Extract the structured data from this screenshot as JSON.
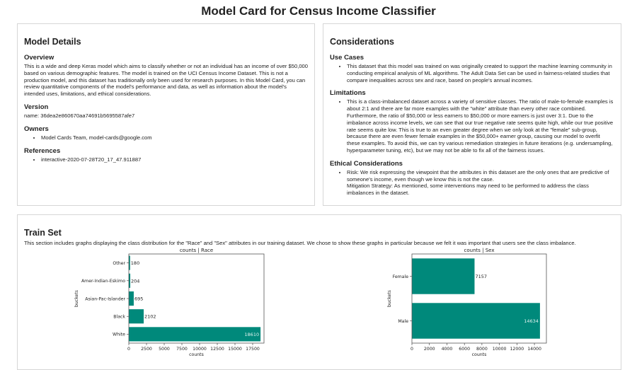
{
  "title": "Model Card for Census Income Classifier",
  "model_details": {
    "heading": "Model Details",
    "overview_heading": "Overview",
    "overview": "This is a wide and deep Keras model which aims to classify whether or not an individual has an income of over $50,000 based on various demographic features. The model is trained on the UCI Census Income Dataset. This is not a production model, and this dataset has traditionally only been used for research purposes. In this Model Card, you can review quantitative components of the model's performance and data, as well as information about the model's intended uses, limitations, and ethical considerations.",
    "version_heading": "Version",
    "version": "name: 36dea2e860670aa74691b5695587afe7",
    "owners_heading": "Owners",
    "owners": [
      "Model Cards Team, model-cards@google.com"
    ],
    "references_heading": "References",
    "references": [
      "interactive-2020-07-28T20_17_47.911887"
    ]
  },
  "considerations": {
    "heading": "Considerations",
    "use_cases_heading": "Use Cases",
    "use_cases": [
      "This dataset that this model was trained on was originally created to support the machine learning community in conducting empirical analysis of ML algorithms. The Adult Data Set can be used in fairness-related studies that compare inequalities across sex and race, based on people's annual incomes."
    ],
    "limitations_heading": "Limitations",
    "limitations": [
      "This is a class-imbalanced dataset across a variety of sensitive classes. The ratio of male-to-female examples is about 2:1 and there are far more examples with the \"white\" attribute than every other race combined. Furthermore, the ratio of $50,000 or less earners to $50,000 or more earners is just over 3:1. Due to the imbalance across income levels, we can see that our true negative rate seems quite high, while our true positive rate seems quite low. This is true to an even greater degree when we only look at the \"female\" sub-group, because there are even fewer female examples in the $50,000+ earner group, causing our model to overfit these examples. To avoid this, we can try various remediation strategies in future iterations (e.g. undersampling, hyperparameter tuning, etc), but we may not be able to fix all of the fairness issues."
    ],
    "ethical_heading": "Ethical Considerations",
    "ethical_risk": "Risk: We risk expressing the viewpoint that the attributes in this dataset are the only ones that are predictive of someone's income, even though we know this is not the case.",
    "ethical_mitigation": "Mitigation Strategy: As mentioned, some interventions may need to be performed to address the class imbalances in the dataset."
  },
  "train_set": {
    "heading": "Train Set",
    "description": "This section includes graphs displaying the class distribution for the \"Race\" and \"Sex\" attributes in our training dataset. We chose to show these graphs in particular because we felt it was important that users see the class imbalance."
  },
  "chart_data": [
    {
      "type": "bar",
      "orientation": "horizontal",
      "title": "counts | Race",
      "xlabel": "counts",
      "ylabel": "buckets",
      "categories": [
        "White",
        "Black",
        "Asian-Pac-Islander",
        "Amer-Indian-Eskimo",
        "Other"
      ],
      "values": [
        18610,
        2102,
        695,
        204,
        180
      ],
      "xticks": [
        0,
        2500,
        5000,
        7500,
        10000,
        12500,
        15000,
        17500
      ],
      "xlim": [
        0,
        19100
      ],
      "color": "#00897b"
    },
    {
      "type": "bar",
      "orientation": "horizontal",
      "title": "counts | Sex",
      "xlabel": "counts",
      "ylabel": "buckets",
      "categories": [
        "Male",
        "Female"
      ],
      "values": [
        14634,
        7157
      ],
      "xticks": [
        0,
        2000,
        4000,
        6000,
        8000,
        10000,
        12000,
        14000
      ],
      "xlim": [
        0,
        15370
      ],
      "color": "#00897b"
    }
  ]
}
